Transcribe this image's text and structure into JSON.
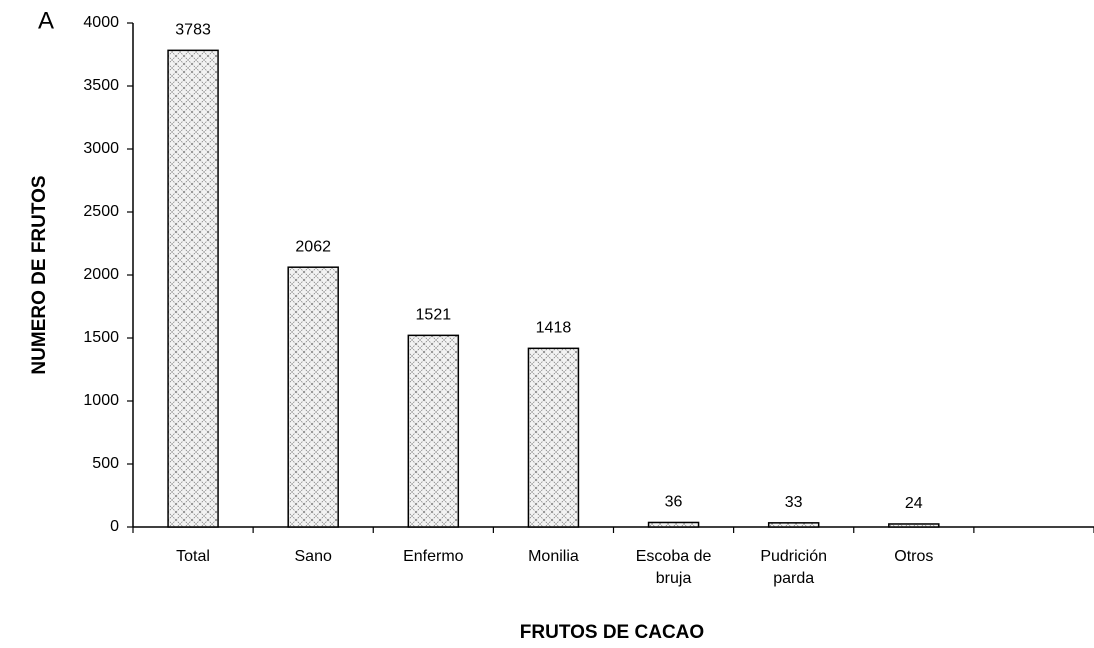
{
  "chart_data": {
    "type": "bar",
    "panel_label": "A",
    "xlabel": "FRUTOS DE CACAO",
    "ylabel": "NUMERO DE FRUTOS",
    "categories": [
      "Total",
      "Sano",
      "Enfermo",
      "Monilia",
      "Escoba de bruja",
      "Pudrición parda",
      "Otros",
      null
    ],
    "values": [
      3783,
      2062,
      1521,
      1418,
      36,
      33,
      24,
      null
    ],
    "color": "#d9d9d9",
    "ylim": [
      0,
      4000
    ],
    "yticks": [
      0,
      500,
      1000,
      1500,
      2000,
      2500,
      3000,
      3500,
      4000
    ],
    "grid": false
  }
}
